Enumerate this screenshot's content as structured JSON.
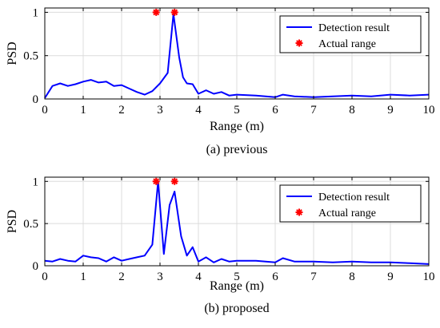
{
  "chart_data": [
    {
      "type": "line",
      "caption": "(a) previous",
      "xlabel": "Range (m)",
      "ylabel": "PSD",
      "xlim": [
        0,
        10
      ],
      "ylim": [
        0,
        1.05
      ],
      "xticks": [
        "0",
        "1",
        "2",
        "3",
        "4",
        "5",
        "6",
        "7",
        "8",
        "9",
        "10"
      ],
      "yticks": [
        "0",
        "0.5",
        "1"
      ],
      "grid": true,
      "legend_position": "top-right",
      "series": [
        {
          "name": "Detection result",
          "color": "#0000ff",
          "x": [
            0,
            0.2,
            0.4,
            0.6,
            0.8,
            1.0,
            1.2,
            1.4,
            1.6,
            1.8,
            2.0,
            2.2,
            2.4,
            2.6,
            2.8,
            3.0,
            3.2,
            3.35,
            3.5,
            3.6,
            3.7,
            3.85,
            4.0,
            4.2,
            4.4,
            4.6,
            4.8,
            5.0,
            5.5,
            6.0,
            6.2,
            6.5,
            7.0,
            7.5,
            8.0,
            8.5,
            9.0,
            9.5,
            10.0
          ],
          "y": [
            0.01,
            0.15,
            0.18,
            0.15,
            0.17,
            0.2,
            0.22,
            0.19,
            0.2,
            0.15,
            0.16,
            0.12,
            0.08,
            0.05,
            0.09,
            0.18,
            0.3,
            0.98,
            0.48,
            0.25,
            0.18,
            0.17,
            0.06,
            0.1,
            0.06,
            0.08,
            0.04,
            0.05,
            0.04,
            0.02,
            0.05,
            0.03,
            0.02,
            0.03,
            0.04,
            0.03,
            0.05,
            0.04,
            0.05
          ]
        },
        {
          "name": "Actual range",
          "color": "#ff0000",
          "marker": "asterisk",
          "x": [
            2.9,
            3.38
          ],
          "y": [
            1.0,
            1.0
          ]
        }
      ]
    },
    {
      "type": "line",
      "caption": "(b) proposed",
      "xlabel": "Range (m)",
      "ylabel": "PSD",
      "xlim": [
        0,
        10
      ],
      "ylim": [
        0,
        1.05
      ],
      "xticks": [
        "0",
        "1",
        "2",
        "3",
        "4",
        "5",
        "6",
        "7",
        "8",
        "9",
        "10"
      ],
      "yticks": [
        "0",
        "0.5",
        "1"
      ],
      "grid": true,
      "legend_position": "top-right",
      "series": [
        {
          "name": "Detection result",
          "color": "#0000ff",
          "x": [
            0,
            0.2,
            0.4,
            0.6,
            0.8,
            1.0,
            1.2,
            1.4,
            1.6,
            1.8,
            2.0,
            2.2,
            2.4,
            2.6,
            2.8,
            2.95,
            3.1,
            3.25,
            3.38,
            3.55,
            3.7,
            3.85,
            4.0,
            4.2,
            4.4,
            4.6,
            4.8,
            5.0,
            5.5,
            6.0,
            6.2,
            6.5,
            7.0,
            7.5,
            8.0,
            8.5,
            9.0,
            9.5,
            10.0
          ],
          "y": [
            0.06,
            0.05,
            0.08,
            0.06,
            0.05,
            0.12,
            0.1,
            0.09,
            0.05,
            0.1,
            0.06,
            0.08,
            0.1,
            0.12,
            0.25,
            1.0,
            0.14,
            0.72,
            0.88,
            0.35,
            0.12,
            0.22,
            0.05,
            0.1,
            0.04,
            0.08,
            0.05,
            0.06,
            0.06,
            0.04,
            0.09,
            0.05,
            0.05,
            0.04,
            0.05,
            0.04,
            0.04,
            0.03,
            0.02
          ]
        },
        {
          "name": "Actual range",
          "color": "#ff0000",
          "marker": "asterisk",
          "x": [
            2.9,
            3.38
          ],
          "y": [
            1.0,
            1.0
          ]
        }
      ]
    }
  ]
}
